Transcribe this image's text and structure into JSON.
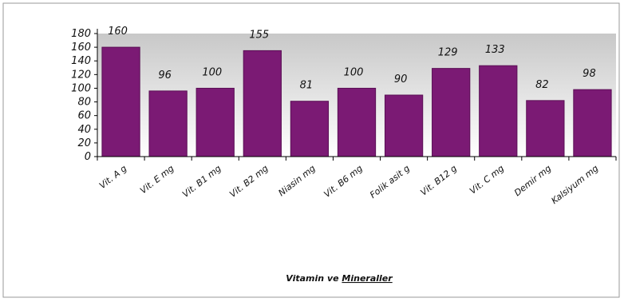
{
  "chart_data": {
    "type": "bar",
    "title": "",
    "xlabel": "Vitamin ve Mineraller",
    "xlabel_underlined_word": "Mineraller",
    "ylabel": "",
    "ylim": [
      0,
      180
    ],
    "y_ticks": [
      0,
      20,
      40,
      60,
      80,
      100,
      120,
      140,
      160,
      180
    ],
    "grid": false,
    "legend": "none",
    "categories": [
      "Vit. A   g",
      "Vit. E  mg",
      "Vit. B1  mg",
      "Vit. B2  mg",
      "Niasin  mg",
      "Vit. B6  mg",
      "Folik asit   g",
      "Vit. B12   g",
      "Vit. C  mg",
      "Demir  mg",
      "Kalsiyum  mg"
    ],
    "values": [
      160,
      96,
      100,
      155,
      81,
      100,
      90,
      129,
      133,
      82,
      98
    ],
    "value_labels": [
      "160",
      "96",
      "100",
      "155",
      "81",
      "100",
      "90",
      "129",
      "133",
      "82",
      "98"
    ],
    "colors": {
      "bar": "#7b1a74",
      "bar_edge": "#5a0f55",
      "plot_bg_top": "#c8c8c8",
      "plot_bg_bottom": "#ffffff",
      "axis": "#000000",
      "frame": "#9a9a9a"
    }
  }
}
